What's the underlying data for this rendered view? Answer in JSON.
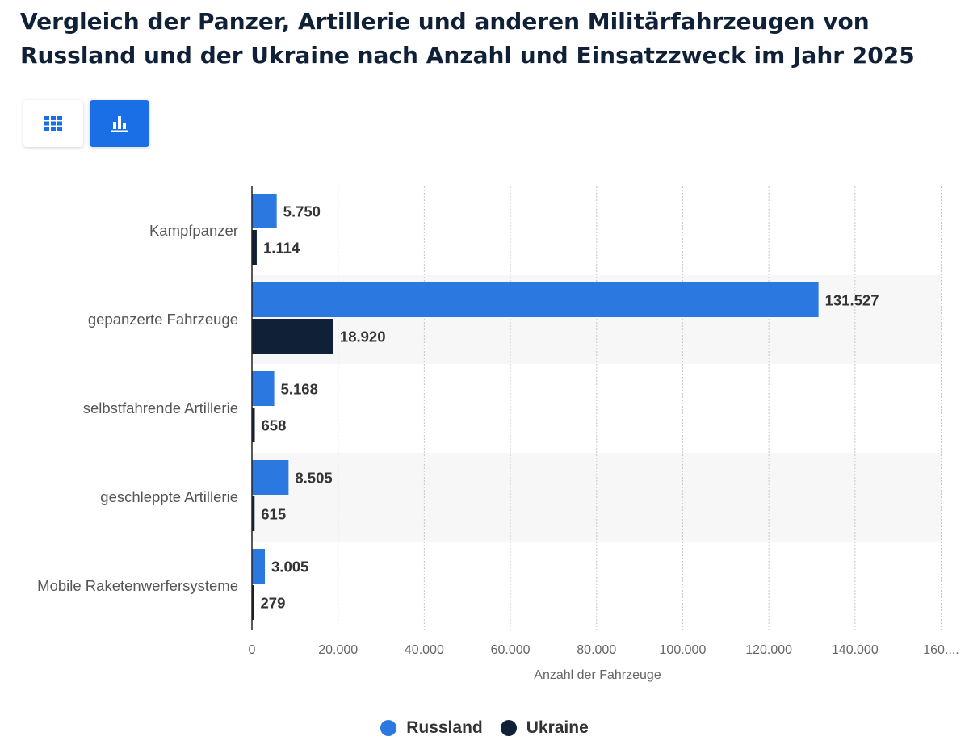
{
  "title": "Vergleich der Panzer, Artillerie und anderen Militärfahrzeugen von Russland und der Ukraine nach Anzahl und Einsatzzweck im Jahr 2025",
  "view_toggle": {
    "table_icon": "grid-icon",
    "chart_icon": "bar-chart-icon",
    "active": "chart"
  },
  "colors": {
    "accent": "#1a6ee6",
    "russland": "#2a78e0",
    "ukraine": "#0f2037"
  },
  "chart_data": {
    "type": "bar",
    "orientation": "horizontal",
    "categories": [
      "Kampfpanzer",
      "gepanzerte Fahrzeuge",
      "selbstfahrende Artillerie",
      "geschleppte Artillerie",
      "Mobile Raketenwerfersysteme"
    ],
    "series": [
      {
        "name": "Russland",
        "values": [
          5750,
          131527,
          5168,
          8505,
          3005
        ],
        "labels": [
          "5.750",
          "131.527",
          "5.168",
          "8.505",
          "3.005"
        ]
      },
      {
        "name": "Ukraine",
        "values": [
          1114,
          18920,
          658,
          615,
          279
        ],
        "labels": [
          "1.114",
          "18.920",
          "658",
          "615",
          "279"
        ]
      }
    ],
    "xlabel": "Anzahl der Fahrzeuge",
    "ylabel": "",
    "xlim": [
      0,
      160000
    ],
    "ticks": [
      0,
      20000,
      40000,
      60000,
      80000,
      100000,
      120000,
      140000,
      160000
    ],
    "tick_labels": [
      "0",
      "20.000",
      "40.000",
      "60.000",
      "80.000",
      "100.000",
      "120.000",
      "140.000",
      "160...."
    ],
    "grid": true,
    "legend_position": "bottom-center"
  }
}
